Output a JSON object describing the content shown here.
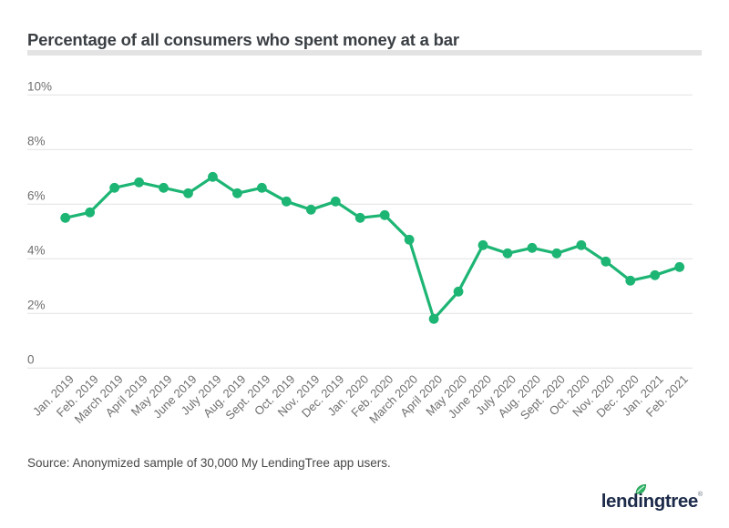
{
  "header": {
    "title": "Percentage of all consumers who spent money at a bar"
  },
  "source": {
    "text": "Source: Anonymized sample of 30,000 My LendingTree app users."
  },
  "logo": {
    "text": "lendingtree",
    "trademark": "®",
    "icon": "leaf-icon",
    "leaf_color": "#2fb566",
    "text_color": "#1d2b4a"
  },
  "colors": {
    "line": "#1db574",
    "point": "#1db574",
    "grid": "#e2e2e2",
    "axis_text": "#6f6f6f",
    "title_text": "#3a3f44",
    "divider": "#e3e3e3",
    "background": "#ffffff"
  },
  "chart_data": {
    "type": "line",
    "title": "Percentage of all consumers who spent money at a bar",
    "categories": [
      "Jan. 2019",
      "Feb. 2019",
      "March 2019",
      "April 2019",
      "May 2019",
      "June 2019",
      "July 2019",
      "Aug. 2019",
      "Sept. 2019",
      "Oct. 2019",
      "Nov. 2019",
      "Dec. 2019",
      "Jan. 2020",
      "Feb. 2020",
      "March 2020",
      "April 2020",
      "May 2020",
      "June 2020",
      "July 2020",
      "Aug. 2020",
      "Sept. 2020",
      "Oct. 2020",
      "Nov. 2020",
      "Dec. 2020",
      "Jan. 2021",
      "Feb. 2021"
    ],
    "series": [
      {
        "name": "Percentage of all consumers who spent money at a bar",
        "values": [
          5.5,
          5.7,
          6.6,
          6.8,
          6.6,
          6.4,
          7.0,
          6.4,
          6.6,
          6.1,
          5.8,
          6.1,
          5.5,
          5.6,
          4.7,
          1.8,
          2.8,
          4.5,
          4.2,
          4.4,
          4.2,
          4.5,
          3.9,
          3.2,
          3.4,
          3.7
        ]
      }
    ],
    "xlabel": "",
    "ylabel": "",
    "ylim": [
      0,
      10
    ],
    "yticks": [
      {
        "value": 10,
        "label": "10%"
      },
      {
        "value": 8,
        "label": "8%"
      },
      {
        "value": 6,
        "label": "6%"
      },
      {
        "value": 4,
        "label": "4%"
      },
      {
        "value": 2,
        "label": "2%"
      },
      {
        "value": 0,
        "label": "0"
      }
    ],
    "grid": "horizontal",
    "legend": "none",
    "x_label_rotation": -45
  }
}
